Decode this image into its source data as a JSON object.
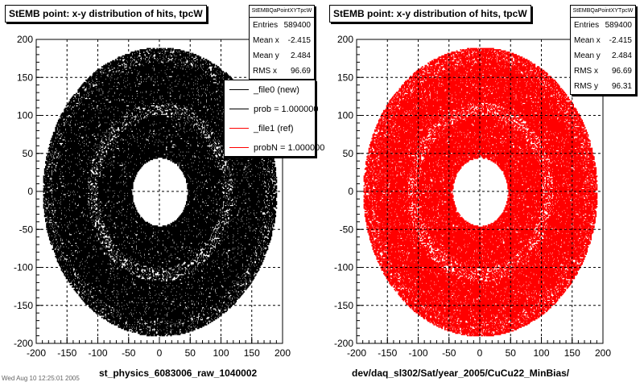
{
  "chart_data": [
    {
      "type": "scatter",
      "title": "StEMB point: x-y distribution of hits, tpcW",
      "xlabel": "st_physics_6083006_raw_1040002",
      "ylabel": "",
      "xlim": [
        -200,
        200
      ],
      "ylim": [
        -200,
        200
      ],
      "xticks": [
        "-200",
        "-150",
        "-100",
        "-50",
        "0",
        "50",
        "100",
        "150",
        "200"
      ],
      "yticks": [
        "200",
        "150",
        "100",
        "50",
        "0",
        "-50",
        "-100",
        "-150",
        "-200"
      ],
      "grid": true,
      "color": "#000000",
      "stats": {
        "header": "StEMBQaPointXYTpcW",
        "rows": [
          {
            "label": "Entries",
            "value": "589400"
          },
          {
            "label": "Mean x",
            "value": "-2.415"
          },
          {
            "label": "Mean y",
            "value": "2.484"
          },
          {
            "label": "RMS x",
            "value": "96.69"
          }
        ]
      },
      "legend": [
        {
          "label": "_file0 (new)",
          "color": "#000000"
        },
        {
          "label": "prob = 1.000000",
          "color": "#000000"
        },
        {
          "label": "_file1 (ref)",
          "color": "#ff0000"
        },
        {
          "label": "probN = 1.000000",
          "color": "#ff0000"
        }
      ],
      "distribution": {
        "inner_radius": 45,
        "outer_radius": 190,
        "y_max": 190
      }
    },
    {
      "type": "scatter",
      "title": "StEMB point: x-y distribution of hits, tpcW",
      "xlabel": "dev/daq_sl302/Sat/year_2005/CuCu22_MinBias/",
      "ylabel": "",
      "xlim": [
        -200,
        200
      ],
      "ylim": [
        -200,
        200
      ],
      "xticks": [
        "-200",
        "-150",
        "-100",
        "-50",
        "0",
        "50",
        "100",
        "150",
        "200"
      ],
      "yticks": [
        "200",
        "150",
        "100",
        "50",
        "0",
        "-50",
        "-100",
        "-150",
        "-200"
      ],
      "grid": true,
      "color": "#ff0000",
      "stats": {
        "header": "StEMBQaPointXYTpcW",
        "rows": [
          {
            "label": "Entries",
            "value": "589400"
          },
          {
            "label": "Mean x",
            "value": "-2.415"
          },
          {
            "label": "Mean y",
            "value": "2.484"
          },
          {
            "label": "RMS x",
            "value": "96.69"
          },
          {
            "label": "RMS y",
            "value": "96.31"
          }
        ]
      },
      "distribution": {
        "inner_radius": 45,
        "outer_radius": 190,
        "y_max": 190
      }
    }
  ],
  "footer": "Wed Aug 10 12:25:01 2005"
}
